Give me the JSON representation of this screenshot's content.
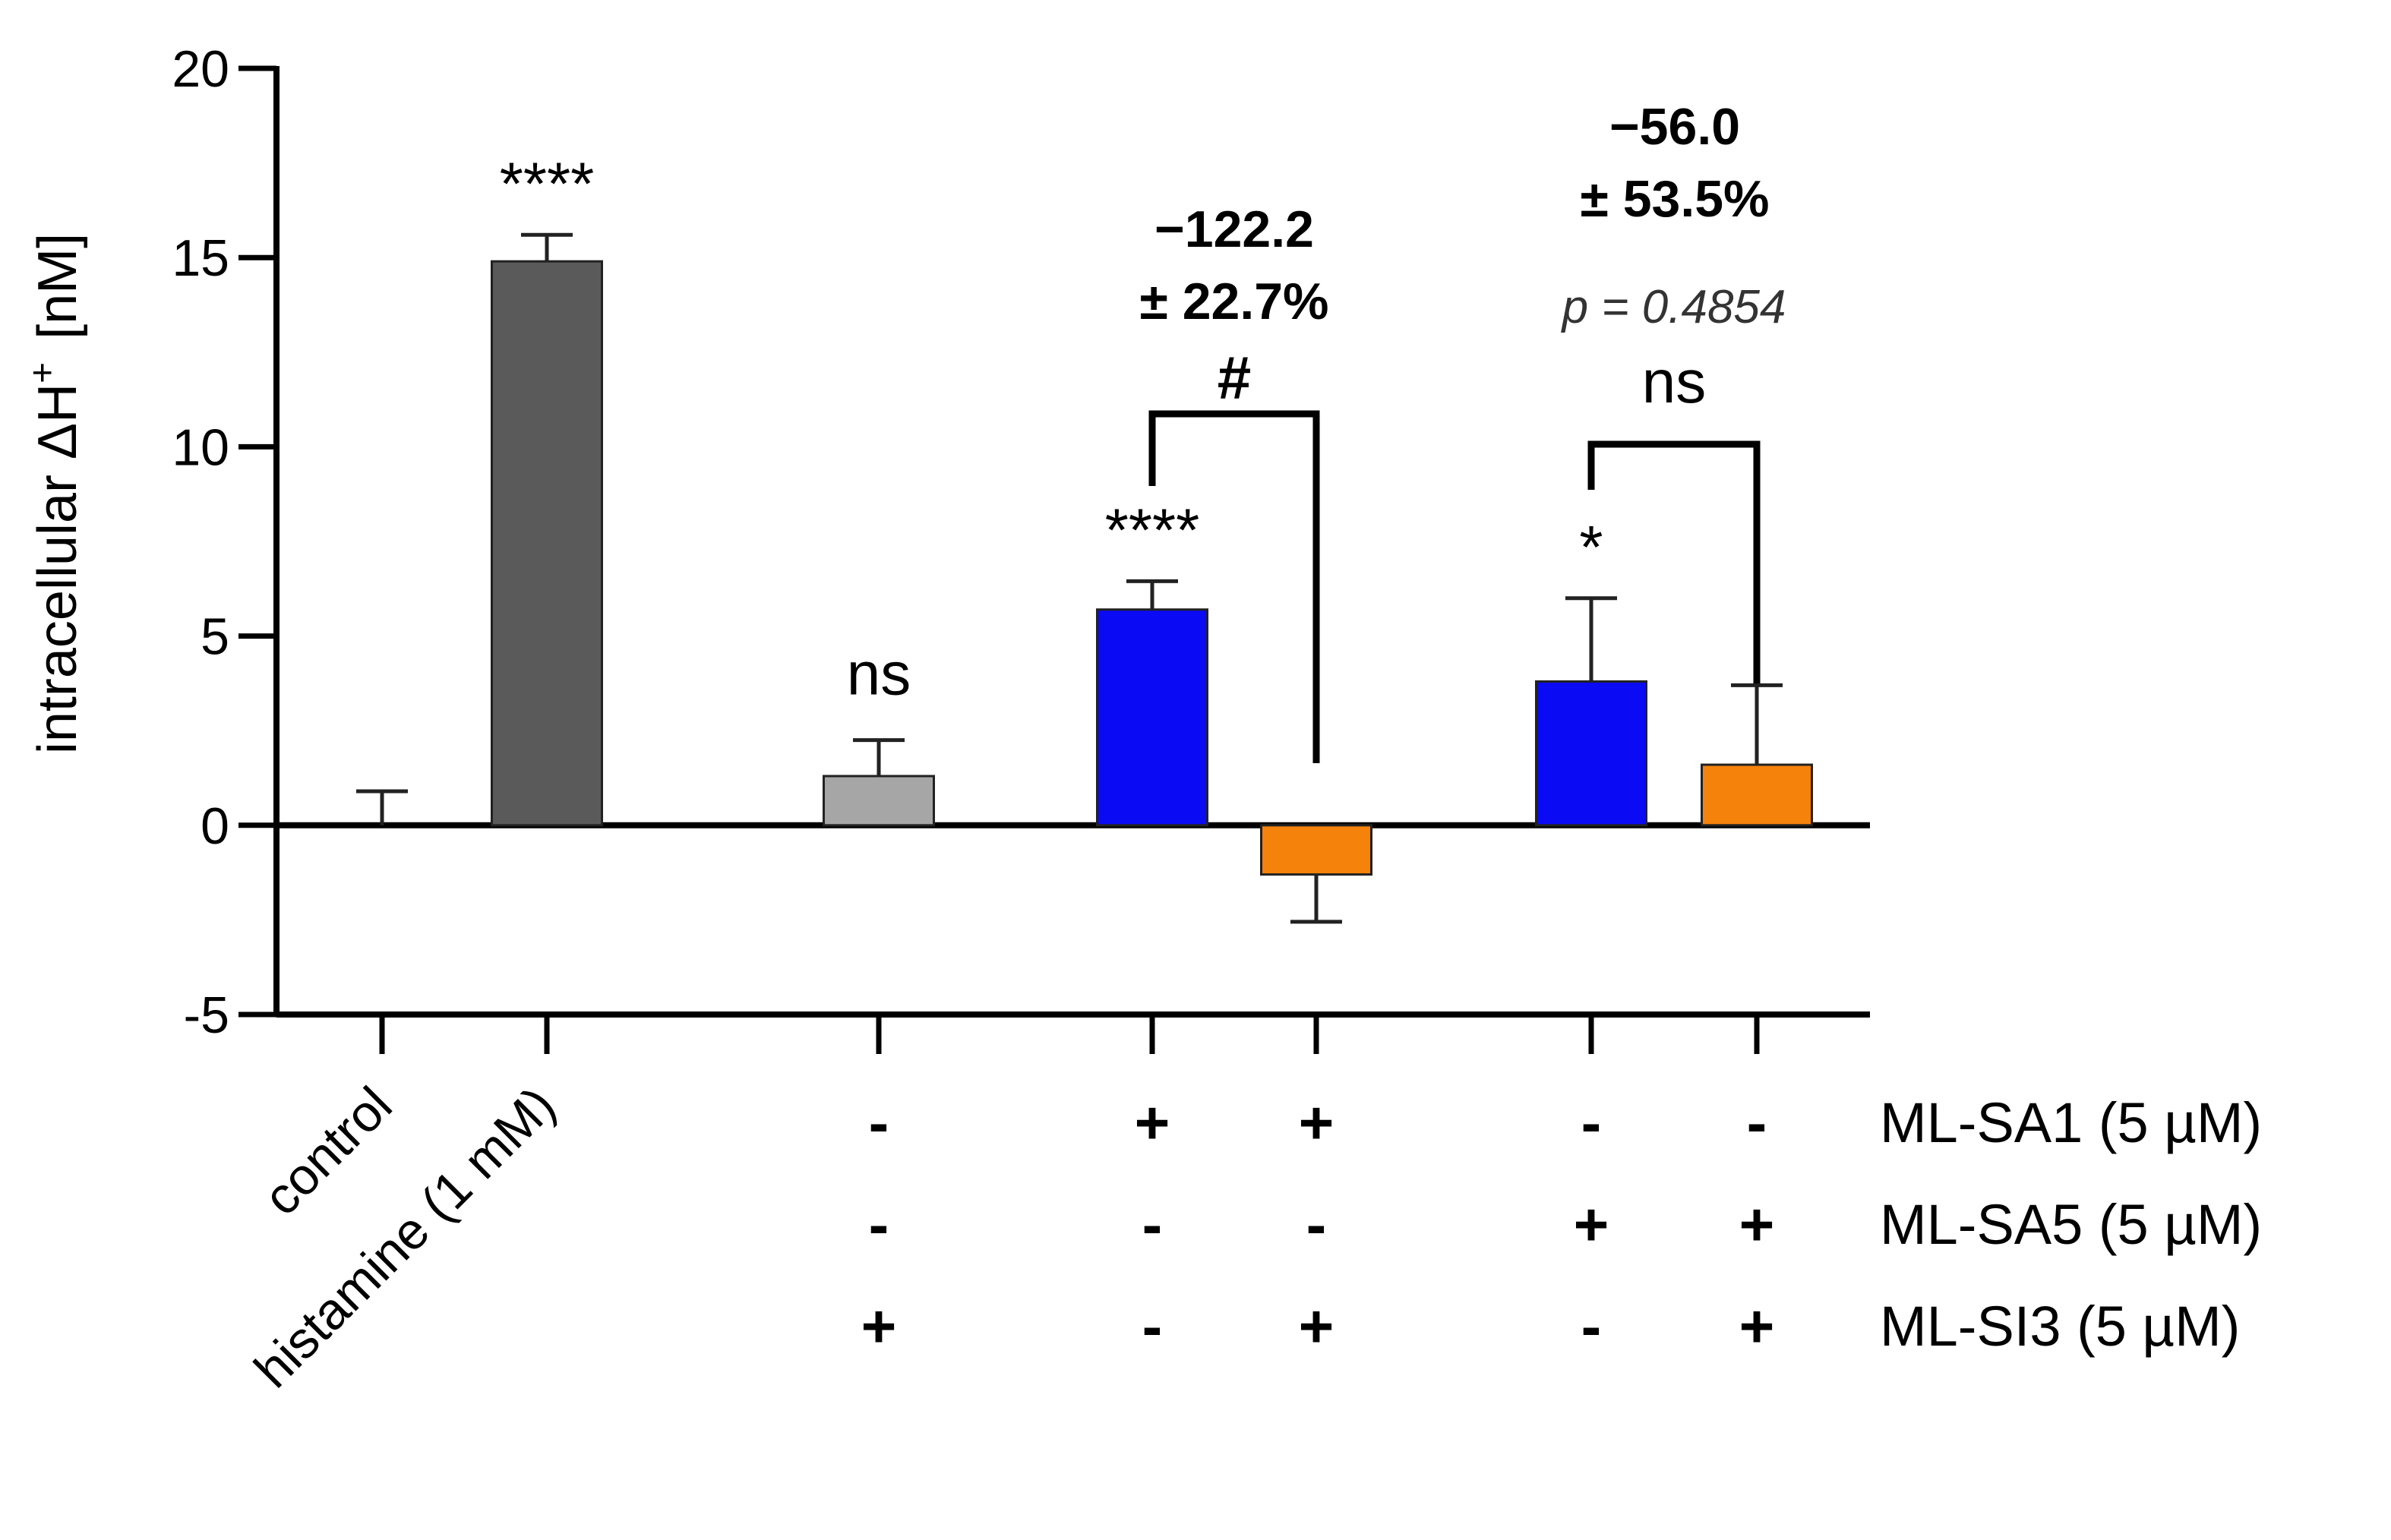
{
  "chart_data": {
    "type": "bar",
    "ylabel": "intracellular ΔH",
    "ylabel_sup": "+",
    "ylabel_unit": "[nM]",
    "ylim": [
      -5,
      20
    ],
    "yticks": [
      -5,
      0,
      5,
      10,
      15,
      20
    ],
    "categories": [
      "control",
      "histamine (1 mM)",
      "ML-SI3",
      "ML-SA1",
      "ML-SA1 + ML-SI3",
      "ML-SA5",
      "ML-SA5 + ML-SI3"
    ],
    "x_labels": [
      "control",
      "histamine (1 mM)"
    ],
    "values": [
      0,
      14.9,
      1.3,
      5.7,
      -1.3,
      3.8,
      1.6
    ],
    "errors": [
      0.9,
      0.7,
      0.95,
      0.75,
      1.25,
      2.2,
      2.1
    ],
    "colors": [
      "#ffffff",
      "#5a5a5a",
      "#a6a6a6",
      "#0a0af5",
      "#f5820a",
      "#0a0af5",
      "#f5820a"
    ],
    "significance": [
      "",
      "****",
      "ns",
      "****",
      "",
      "*",
      ""
    ],
    "comparisons": [
      {
        "from": 3,
        "to": 4,
        "label": "#",
        "annotation_line1": "−122.2",
        "annotation_line2": "± 22.7%"
      },
      {
        "from": 5,
        "to": 6,
        "label": "ns",
        "annotation_line1": "−56.0",
        "annotation_line2": "± 53.5%",
        "p_value": "p = 0.4854"
      }
    ],
    "treatment_rows": [
      {
        "label": "ML-SA1 (5 µM)",
        "signs": [
          "",
          "",
          "-",
          "+",
          "+",
          "-",
          "-"
        ]
      },
      {
        "label": "ML-SA5 (5 µM)",
        "signs": [
          "",
          "",
          "-",
          "-",
          "-",
          "+",
          "+"
        ]
      },
      {
        "label": "ML-SI3 (5 µM)",
        "signs": [
          "",
          "",
          "+",
          "-",
          "+",
          "-",
          "+"
        ]
      }
    ]
  }
}
